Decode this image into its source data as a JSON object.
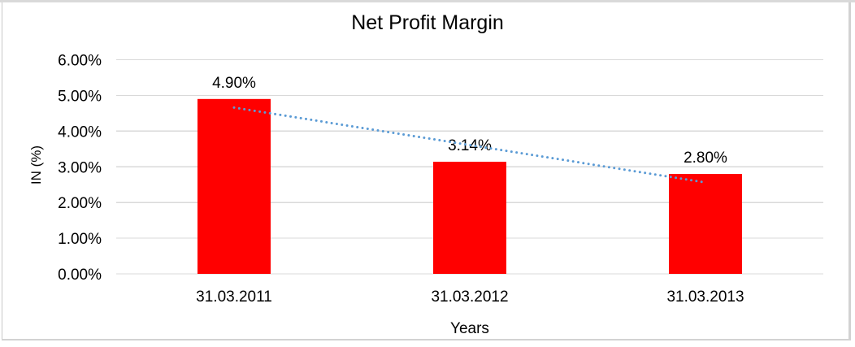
{
  "chart_data": {
    "type": "bar",
    "title": "Net Profit Margin",
    "xlabel": "Years",
    "ylabel": "IN (%)",
    "categories": [
      "31.03.2011",
      "31.03.2012",
      "31.03.2013"
    ],
    "values": [
      4.9,
      3.14,
      2.8
    ],
    "data_labels": [
      "4.90%",
      "3.14%",
      "2.80%"
    ],
    "ylim": [
      0,
      6
    ],
    "ytick_step": 1,
    "yticks": [
      "0.00%",
      "1.00%",
      "2.00%",
      "3.00%",
      "4.00%",
      "5.00%",
      "6.00%"
    ],
    "grid": true,
    "legend": "none",
    "bar_color": "#ff0000",
    "gridline_color": "#d9d9d9",
    "text_color": "#000000",
    "trendline": {
      "type": "linear",
      "style": "dotted",
      "color": "#5b9bd5",
      "endpoint_values": [
        4.66,
        2.56
      ]
    }
  }
}
